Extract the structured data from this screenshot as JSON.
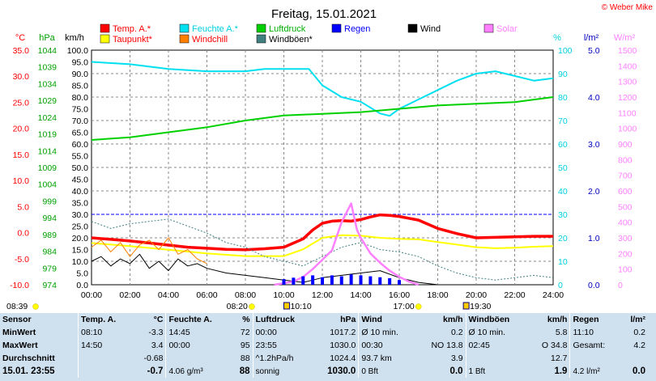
{
  "chart_data": {
    "type": "line",
    "title": "Freitag, 15.01.2021",
    "copyright": "© Weber Mike",
    "x_ticks": [
      "00:00",
      "02:00",
      "04:00",
      "06:00",
      "08:00",
      "10:00",
      "12:00",
      "14:00",
      "16:00",
      "18:00",
      "20:00",
      "22:00",
      "24:00"
    ],
    "axes": {
      "temp": {
        "label": "°C",
        "ticks": [
          "35.0",
          "30.0",
          "25.0",
          "20.0",
          "15.0",
          "10.0",
          "5.0",
          "0.0",
          "-5.0",
          "-10.0"
        ],
        "color": "#ff0000"
      },
      "pressure": {
        "label": "hPa",
        "ticks": [
          "1044",
          "1039",
          "1034",
          "1029",
          "1024",
          "1019",
          "1014",
          "1009",
          "1004",
          "999",
          "994",
          "989",
          "984",
          "979",
          "974"
        ],
        "color": "#00a000"
      },
      "wind": {
        "label": "km/h",
        "ticks": [
          "100.0",
          "95.0",
          "90.0",
          "85.0",
          "80.0",
          "75.0",
          "70.0",
          "65.0",
          "60.0",
          "55.0",
          "50.0",
          "45.0",
          "40.0",
          "35.0",
          "30.0",
          "25.0",
          "20.0",
          "15.0",
          "10.0",
          "5.0",
          "0.0"
        ],
        "color": "#000000"
      },
      "humidity": {
        "label": "%",
        "ticks": [
          "100",
          "90",
          "80",
          "70",
          "60",
          "50",
          "40",
          "30",
          "20",
          "10",
          "0"
        ],
        "color": "#00d0e0"
      },
      "rain": {
        "label": "l/m²",
        "ticks": [
          "5.0",
          "4.0",
          "3.0",
          "2.0",
          "1.0",
          "0.0"
        ],
        "color": "#0000c0"
      },
      "solar": {
        "label": "W/m²",
        "ticks": [
          "1500",
          "1400",
          "1300",
          "1200",
          "1100",
          "1000",
          "900",
          "800",
          "700",
          "600",
          "500",
          "400",
          "300",
          "200",
          "100",
          "0"
        ],
        "color": "#ff80ff"
      }
    },
    "legend": [
      {
        "name": "Temp. A.*",
        "color": "#ff0000"
      },
      {
        "name": "Feuchte A.*",
        "color": "#00e0f0"
      },
      {
        "name": "Luftdruck",
        "color": "#00d000"
      },
      {
        "name": "Regen",
        "color": "#0000ff"
      },
      {
        "name": "Wind",
        "color": "#000000"
      },
      {
        "name": "Solar",
        "color": "#ff80ff"
      },
      {
        "name": "Taupunkt*",
        "color": "#ffff00"
      },
      {
        "name": "Windchill",
        "color": "#ff8000"
      },
      {
        "name": "Windböen*",
        "color": "#408080"
      }
    ],
    "markers": {
      "sunrise": "08:20",
      "sunset": "17:00",
      "moonrise": "10:10",
      "moonset": "19:30",
      "left": "08:39"
    },
    "series": [
      {
        "name": "Temp. A.*",
        "unit": "°C",
        "x": [
          0,
          1,
          2,
          3,
          4,
          5,
          6,
          7,
          8,
          9,
          10,
          11,
          11.5,
          12,
          12.5,
          13,
          13.5,
          14,
          14.5,
          15,
          15.5,
          16,
          17,
          18,
          19,
          20,
          21,
          22,
          23,
          24
        ],
        "y": [
          -1.0,
          -1.3,
          -1.6,
          -2.0,
          -2.4,
          -2.8,
          -3.0,
          -3.2,
          -3.3,
          -3.1,
          -2.8,
          -1.2,
          0.5,
          1.8,
          2.2,
          2.3,
          2.2,
          2.5,
          3.0,
          3.4,
          3.3,
          3.1,
          2.4,
          0.8,
          -0.2,
          -1.0,
          -0.9,
          -0.8,
          -0.7,
          -0.7
        ]
      },
      {
        "name": "Feuchte A.*",
        "unit": "%",
        "x": [
          0,
          2,
          4,
          6,
          8,
          9,
          10,
          11,
          11.3,
          12,
          13,
          14,
          15,
          15.5,
          16,
          17,
          18,
          19,
          20,
          21,
          22,
          23,
          24
        ],
        "y": [
          95,
          94,
          92,
          91,
          91,
          92,
          92,
          92,
          92,
          85,
          80,
          78,
          73,
          72,
          75,
          79,
          83,
          87,
          90,
          91,
          89,
          87,
          88
        ]
      },
      {
        "name": "Luftdruck",
        "unit": "hPa",
        "x": [
          0,
          2,
          4,
          6,
          8,
          10,
          12,
          14,
          16,
          18,
          20,
          22,
          24
        ],
        "y": [
          1017.2,
          1018,
          1019.5,
          1021,
          1023,
          1024.5,
          1025,
          1025.5,
          1026.5,
          1027.5,
          1028,
          1028.5,
          1030.0
        ]
      },
      {
        "name": "Taupunkt*",
        "unit": "°C",
        "x": [
          0,
          2,
          4,
          6,
          8,
          10,
          11,
          12,
          13,
          14,
          15,
          16,
          17,
          18,
          19,
          20,
          21,
          22,
          23,
          24
        ],
        "y": [
          -2.0,
          -2.6,
          -3.3,
          -4.0,
          -4.5,
          -4.5,
          -3.2,
          -1.0,
          -0.5,
          -0.6,
          -1.0,
          -1.2,
          -1.3,
          -1.8,
          -2.3,
          -2.8,
          -3.0,
          -2.9,
          -2.7,
          -2.6
        ]
      },
      {
        "name": "Windchill",
        "unit": "km/h",
        "x": [
          0,
          0.5,
          1,
          1.5,
          2,
          2.5,
          3,
          3.5,
          4,
          4.5,
          5,
          5.5,
          6
        ],
        "y": [
          16,
          19,
          14,
          18,
          12,
          17,
          19,
          15,
          20,
          13,
          15,
          11,
          9
        ]
      },
      {
        "name": "Wind",
        "unit": "km/h",
        "x": [
          0,
          0.5,
          1,
          1.5,
          2,
          2.5,
          3,
          3.5,
          4,
          4.5,
          5,
          5.5,
          6,
          7,
          8,
          9,
          10,
          11,
          12,
          13,
          14,
          15,
          16,
          17,
          18
        ],
        "y": [
          10,
          12,
          8,
          11,
          9,
          13,
          7,
          10,
          6,
          11,
          8,
          9,
          7,
          5,
          4,
          3,
          2,
          1,
          3,
          4,
          5,
          6,
          3,
          1,
          0
        ]
      },
      {
        "name": "Windböen*",
        "unit": "km/h",
        "x": [
          0,
          1,
          2,
          3,
          4,
          5,
          6,
          7,
          8,
          9,
          10,
          11,
          12,
          13,
          14,
          15,
          16,
          17,
          18,
          19,
          20,
          21,
          22,
          23,
          24
        ],
        "y": [
          27,
          24,
          26,
          27,
          28,
          25,
          22,
          18,
          16,
          12,
          10,
          8,
          12,
          16,
          18,
          15,
          14,
          12,
          8,
          5,
          3,
          2,
          3,
          4,
          3
        ]
      },
      {
        "name": "Solar",
        "unit": "W/m²",
        "x": [
          9.5,
          10.5,
          11,
          11.5,
          12,
          12.5,
          13,
          13.5,
          13.8,
          14,
          14.5,
          15,
          15.5,
          16,
          16.5,
          17
        ],
        "y": [
          0,
          20,
          50,
          100,
          160,
          220,
          400,
          520,
          350,
          300,
          200,
          140,
          90,
          50,
          20,
          0
        ]
      },
      {
        "name": "Regen",
        "unit": "l/m²",
        "x": [
          10,
          10.5,
          11,
          11.5,
          12,
          12.5,
          13,
          13.5,
          14,
          14.5,
          15,
          15.5,
          16
        ],
        "y": [
          0.12,
          0.15,
          0.18,
          0.2,
          0.16,
          0.2,
          0.18,
          0.22,
          0.2,
          0.18,
          0.16,
          0.14,
          0.1
        ]
      }
    ]
  },
  "stats": {
    "header": {
      "sensor": "Sensor",
      "temp": "Temp. A.",
      "temp_unit": "°C",
      "hum": "Feuchte A.",
      "hum_unit": "%",
      "press": "Luftdruck",
      "press_unit": "hPa",
      "wind": "Wind",
      "wind_unit": "km/h",
      "gust": "Windböen",
      "gust_unit": "km/h",
      "rain": "Regen",
      "rain_unit": "l/m²"
    },
    "min": {
      "label": "MinWert",
      "temp_time": "08:10",
      "temp": "-3.3",
      "hum_time": "14:45",
      "hum": "72",
      "press_time": "00:00",
      "press": "1017.2",
      "wind_label": "Ø 10 min.",
      "wind": "0.2",
      "gust_label": "Ø 10 min.",
      "gust": "5.8",
      "rain_time": "11:10",
      "rain": "0.2"
    },
    "max": {
      "label": "MaxWert",
      "temp_time": "14:50",
      "temp": "3.4",
      "hum_time": "00:00",
      "hum": "95",
      "press_time": "23:55",
      "press": "1030.0",
      "wind_time": "00:30",
      "wind": "NO 13.8",
      "gust_time": "02:45",
      "gust": "O 34.8",
      "rain_label": "Gesamt:",
      "rain": "4.2"
    },
    "avg": {
      "label": "Durchschnitt",
      "temp": "-0.68",
      "hum": "88",
      "press_trend": "^1.2hPa/h",
      "press": "1024.4",
      "wind_dist": "93.7 km",
      "wind": "3.9",
      "gust": "12.7"
    },
    "current": {
      "label": "15.01. 23:55",
      "temp": "-0.7",
      "hum_abs": "4.06 g/m³",
      "hum": "88",
      "press_text": "sonnig",
      "press": "1030.0",
      "wind_bft": "0 Bft",
      "wind": "0.0",
      "gust_bft": "1 Bft",
      "gust": "1.9",
      "rain_day": "4.2 l/m²",
      "rain": "0.0"
    }
  }
}
